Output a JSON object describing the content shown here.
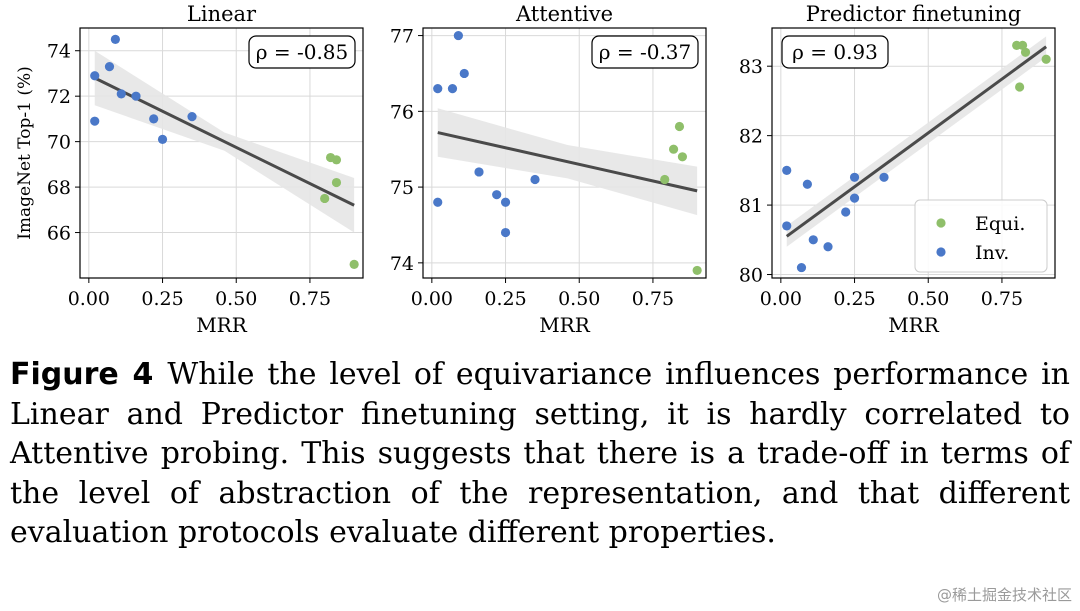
{
  "figure": {
    "label": "Figure 4",
    "caption": "While the level of equivariance influences performance in Linear and Predictor finetuning setting, it is hardly correlated to Attentive probing. This suggests that there is a trade-off in terms of the level of abstraction of the representation, and that different evaluation protocols evaluate different properties."
  },
  "watermark": "@稀土掘金技术社区",
  "colors": {
    "equi": "#8fbf6a",
    "inv": "#4a78c8",
    "fit": "#4a4a4a",
    "band": "#e6e6e6"
  },
  "legend": {
    "equi": "Equi.",
    "inv": "Inv."
  },
  "chart_data": [
    {
      "type": "scatter",
      "title": "Linear",
      "xlabel": "MRR",
      "ylabel": "ImageNet Top-1 (%)",
      "xlim": [
        -0.03,
        0.93
      ],
      "ylim": [
        64.0,
        75.0
      ],
      "xticks": [
        "0.00",
        "0.25",
        "0.50",
        "0.75"
      ],
      "xtick_values": [
        0,
        0.25,
        0.5,
        0.75
      ],
      "yticks": [
        "66",
        "68",
        "70",
        "72",
        "74"
      ],
      "ytick_values": [
        66,
        68,
        70,
        72,
        74
      ],
      "rho": "ρ = -0.85",
      "fit": {
        "x0": 0.02,
        "y0": 72.8,
        "x1": 0.9,
        "y1": 67.2,
        "band": [
          0.4,
          1.2
        ]
      },
      "series": [
        {
          "name": "Equi.",
          "x": [
            0.82,
            0.84,
            0.84,
            0.8,
            0.9
          ],
          "y": [
            69.3,
            69.2,
            68.2,
            67.5,
            64.6
          ]
        },
        {
          "name": "Inv.",
          "x": [
            0.02,
            0.02,
            0.07,
            0.09,
            0.11,
            0.16,
            0.22,
            0.25,
            0.35
          ],
          "y": [
            72.9,
            70.9,
            73.3,
            74.5,
            72.1,
            72.0,
            71.0,
            70.1,
            71.1
          ]
        }
      ]
    },
    {
      "type": "scatter",
      "title": "Attentive",
      "xlabel": "MRR",
      "ylabel": "",
      "xlim": [
        -0.03,
        0.93
      ],
      "ylim": [
        73.8,
        77.1
      ],
      "xticks": [
        "0.00",
        "0.25",
        "0.50",
        "0.75"
      ],
      "xtick_values": [
        0,
        0.25,
        0.5,
        0.75
      ],
      "yticks": [
        "74",
        "75",
        "76",
        "77"
      ],
      "ytick_values": [
        74,
        75,
        76,
        77
      ],
      "rho": "ρ = -0.37",
      "fit": {
        "x0": 0.02,
        "y0": 75.72,
        "x1": 0.9,
        "y1": 74.95,
        "band": [
          0.22,
          0.32
        ]
      },
      "series": [
        {
          "name": "Equi.",
          "x": [
            0.84,
            0.82,
            0.85,
            0.79,
            0.9
          ],
          "y": [
            75.8,
            75.5,
            75.4,
            75.1,
            73.9
          ]
        },
        {
          "name": "Inv.",
          "x": [
            0.02,
            0.07,
            0.09,
            0.11,
            0.02,
            0.16,
            0.22,
            0.25,
            0.25,
            0.35
          ],
          "y": [
            76.3,
            76.3,
            77.0,
            76.5,
            74.8,
            75.2,
            74.9,
            74.8,
            74.4,
            75.1
          ]
        }
      ]
    },
    {
      "type": "scatter",
      "title": "Predictor finetuning",
      "xlabel": "MRR",
      "ylabel": "",
      "xlim": [
        -0.03,
        0.93
      ],
      "ylim": [
        79.95,
        83.55
      ],
      "xticks": [
        "0.00",
        "0.25",
        "0.50",
        "0.75"
      ],
      "xtick_values": [
        0,
        0.25,
        0.5,
        0.75
      ],
      "yticks": [
        "80",
        "81",
        "82",
        "83"
      ],
      "ytick_values": [
        80,
        81,
        82,
        83
      ],
      "rho": "ρ = 0.93",
      "fit": {
        "x0": 0.02,
        "y0": 80.55,
        "x1": 0.9,
        "y1": 83.28,
        "band": [
          0.15,
          0.15
        ]
      },
      "series": [
        {
          "name": "Equi.",
          "x": [
            0.8,
            0.82,
            0.83,
            0.9,
            0.81
          ],
          "y": [
            83.3,
            83.3,
            83.2,
            83.1,
            82.7
          ]
        },
        {
          "name": "Inv.",
          "x": [
            0.02,
            0.02,
            0.07,
            0.09,
            0.11,
            0.16,
            0.22,
            0.25,
            0.25,
            0.35
          ],
          "y": [
            81.5,
            80.7,
            80.1,
            81.3,
            80.5,
            80.4,
            80.9,
            81.4,
            81.1,
            81.4
          ]
        }
      ],
      "show_legend": true
    }
  ]
}
